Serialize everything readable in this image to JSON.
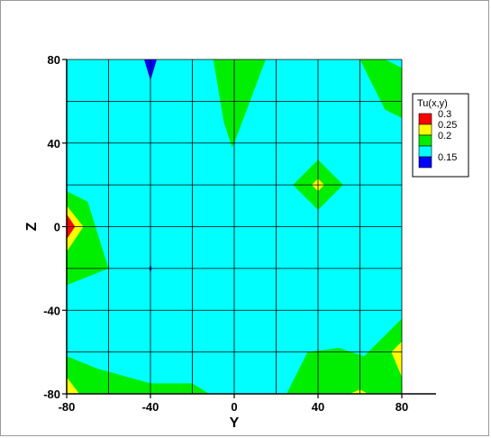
{
  "chart_data": {
    "type": "heatmap",
    "subtype": "filled-contour",
    "xlabel": "Y",
    "ylabel": "Z",
    "xlim": [
      -80,
      80
    ],
    "ylim": [
      -80,
      80
    ],
    "x_ticks": [
      "-80",
      "-40",
      "0",
      "40",
      "80"
    ],
    "y_ticks": [
      "80",
      "40",
      "0",
      "-40",
      "-80"
    ],
    "x_tick_values": [
      -80,
      -40,
      0,
      40,
      80
    ],
    "y_tick_values": [
      80,
      40,
      0,
      -40,
      -80
    ],
    "grid_step": 20,
    "grid": true,
    "legend": {
      "title": "Tu(x,y)",
      "position": "right",
      "levels": [
        {
          "label": "0.3",
          "value": 0.3,
          "color": "#ff0000"
        },
        {
          "label": "0.25",
          "value": 0.25,
          "color": "#ffff00"
        },
        {
          "label": "0.2",
          "value": 0.2,
          "color": "#00ee00"
        },
        {
          "label": "",
          "value": 0.175,
          "color": "#00ffff"
        },
        {
          "label": "0.15",
          "value": 0.15,
          "color": "#0000ff"
        }
      ]
    },
    "background_level": "0.175",
    "regions": [
      {
        "level": "0.2",
        "points": [
          [
            -80,
            17
          ],
          [
            -70,
            12
          ],
          [
            -60,
            -20
          ],
          [
            -80,
            -28
          ]
        ]
      },
      {
        "level": "0.25",
        "points": [
          [
            -80,
            10
          ],
          [
            -72,
            0
          ],
          [
            -80,
            -12
          ]
        ]
      },
      {
        "level": "0.3",
        "points": [
          [
            -80,
            6
          ],
          [
            -76,
            0
          ],
          [
            -80,
            -6
          ]
        ]
      },
      {
        "level": "0.15",
        "points": [
          [
            -43,
            80
          ],
          [
            -37,
            80
          ],
          [
            -40,
            70
          ]
        ]
      },
      {
        "level": "0.15",
        "points": [
          [
            -40,
            -18
          ],
          [
            -39.4,
            -20
          ],
          [
            -40,
            -22
          ],
          [
            -40.6,
            -20
          ]
        ]
      },
      {
        "level": "0.2",
        "points": [
          [
            -10,
            80
          ],
          [
            15,
            80
          ],
          [
            0,
            40
          ],
          [
            -1,
            38
          ],
          [
            -5,
            50
          ]
        ]
      },
      {
        "level": "0.2",
        "points": [
          [
            60,
            80
          ],
          [
            72,
            80
          ],
          [
            80,
            76
          ],
          [
            80,
            52
          ],
          [
            72,
            56
          ],
          [
            65,
            70
          ]
        ]
      },
      {
        "level": "0.2",
        "points": [
          [
            40,
            32
          ],
          [
            52,
            20
          ],
          [
            40,
            8
          ],
          [
            28,
            20
          ]
        ]
      },
      {
        "level": "0.25",
        "points": [
          [
            40,
            23
          ],
          [
            43,
            20
          ],
          [
            40,
            17
          ],
          [
            37,
            20
          ]
        ]
      },
      {
        "level": "0.2",
        "points": [
          [
            -80,
            -62
          ],
          [
            -65,
            -68
          ],
          [
            -40,
            -75
          ],
          [
            -20,
            -75
          ],
          [
            -12,
            -80
          ],
          [
            -80,
            -80
          ]
        ]
      },
      {
        "level": "0.25",
        "points": [
          [
            -80,
            -72
          ],
          [
            -74,
            -80
          ],
          [
            -80,
            -80
          ]
        ]
      },
      {
        "level": "0.2",
        "points": [
          [
            25,
            -80
          ],
          [
            35,
            -60
          ],
          [
            50,
            -58
          ],
          [
            62,
            -62
          ],
          [
            80,
            -44
          ],
          [
            80,
            -80
          ]
        ]
      },
      {
        "level": "0.25",
        "points": [
          [
            75,
            -60
          ],
          [
            80,
            -55
          ],
          [
            80,
            -72
          ]
        ]
      },
      {
        "level": "0.25",
        "points": [
          [
            55,
            -80
          ],
          [
            60,
            -78
          ],
          [
            64,
            -80
          ]
        ]
      }
    ]
  }
}
